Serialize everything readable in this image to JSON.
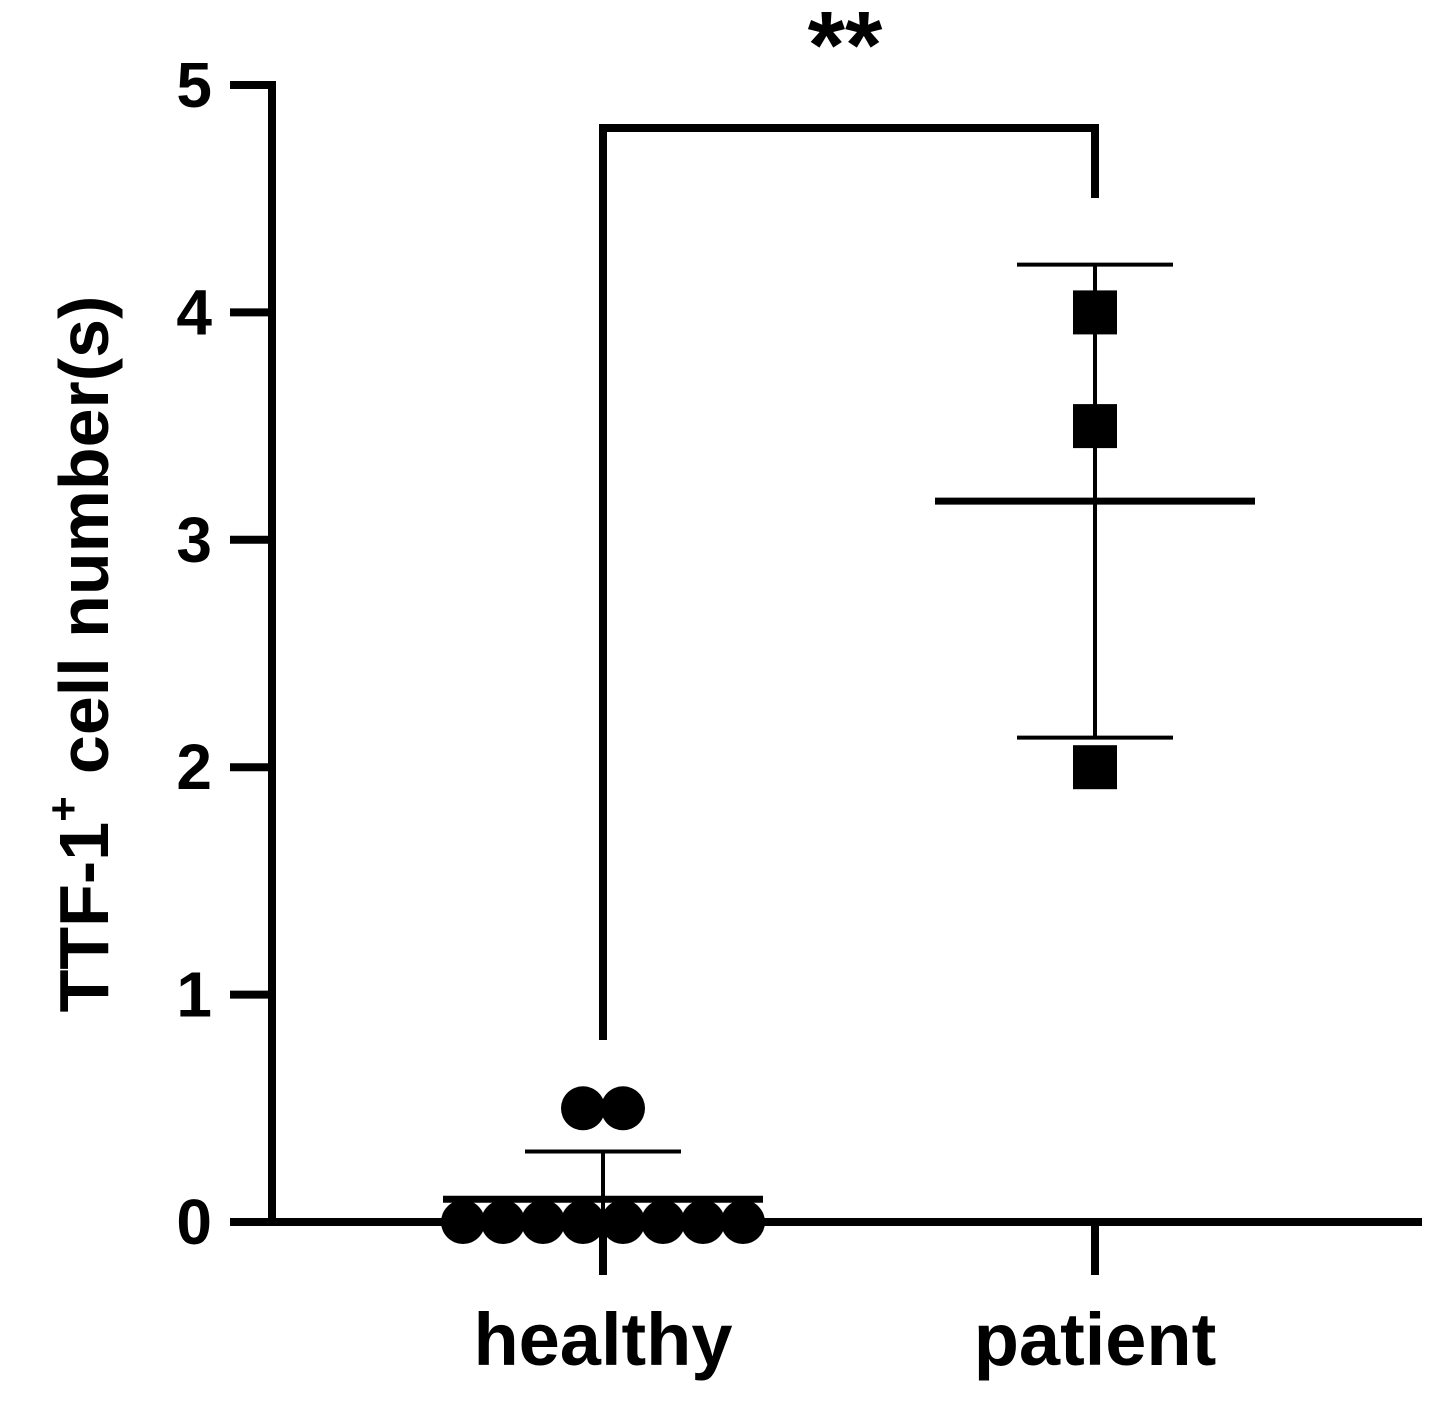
{
  "chart_data": {
    "type": "dot",
    "annotation": "**",
    "ylabel": {
      "text": "TTF-1",
      "superscript": "+",
      "rest": "cell number(s)"
    },
    "categories": [
      "healthy",
      "patient"
    ],
    "markers": [
      "circle",
      "square"
    ],
    "color": "#000000",
    "values": [
      [
        0,
        0,
        0,
        0,
        0,
        0,
        0,
        0,
        0.5,
        0.5
      ],
      [
        4,
        3.5,
        2
      ]
    ],
    "mean": [
      0.1,
      3.17
    ],
    "sd": [
      0.21,
      1.04
    ],
    "ylim": [
      0,
      5
    ],
    "yticks": [
      0,
      1,
      2,
      3,
      4,
      5
    ]
  }
}
